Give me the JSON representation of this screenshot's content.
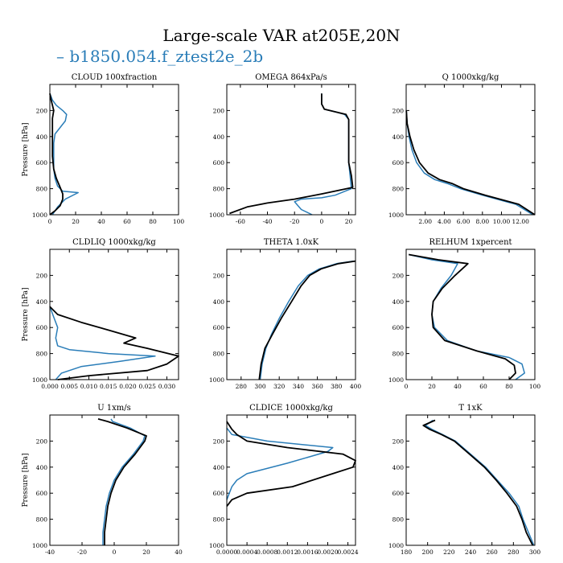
{
  "figure": {
    "title": "Large-scale VAR at205E,20N",
    "legend": [
      {
        "marker": "–",
        "name": "b1850.054.f_ztest2e_2b",
        "color": "#2a7db8"
      }
    ]
  },
  "colors": {
    "series_blue": "#2a7db8",
    "series_black": "#000000"
  },
  "chart_data": [
    {
      "type": "line",
      "title": "CLOUD  100xfraction",
      "ylabel": "Pressure [hPa]",
      "xlim": [
        0,
        100
      ],
      "ylim": [
        1000,
        0
      ],
      "xticks": [
        0,
        20,
        40,
        60,
        80,
        100
      ],
      "xtick_labels": [
        "0",
        "20",
        "40",
        "60",
        "80",
        "100"
      ],
      "yticks": [
        200,
        400,
        600,
        800,
        1000
      ],
      "series": [
        {
          "name": "b1850.054.f_ztest2e_2b",
          "color": "#2a7db8",
          "x": [
            0,
            2,
            5,
            10,
            13,
            12,
            8,
            4,
            3,
            3,
            3,
            4,
            6,
            10,
            22,
            12,
            6,
            2
          ],
          "y": [
            70,
            120,
            160,
            200,
            230,
            280,
            330,
            380,
            450,
            550,
            650,
            720,
            780,
            820,
            830,
            880,
            940,
            1000
          ]
        },
        {
          "name": "",
          "color": "#000000",
          "x": [
            0,
            1,
            2,
            3,
            2,
            2,
            2,
            2,
            3,
            5,
            8,
            10,
            10,
            8,
            4,
            0
          ],
          "y": [
            70,
            120,
            160,
            200,
            260,
            350,
            450,
            550,
            650,
            720,
            790,
            840,
            880,
            930,
            970,
            1000
          ]
        }
      ]
    },
    {
      "type": "line",
      "title": "OMEGA  864xPa/s",
      "ylabel": "",
      "xlim": [
        -70,
        25
      ],
      "ylim": [
        1000,
        0
      ],
      "xticks": [
        -60,
        -40,
        -20,
        0,
        20
      ],
      "xtick_labels": [
        "-60",
        "-40",
        "-20",
        "0",
        "20"
      ],
      "yticks": [
        200,
        400,
        600,
        800,
        1000
      ],
      "series": [
        {
          "name": "b1850.054.f_ztest2e_2b",
          "color": "#2a7db8",
          "x": [
            0,
            0,
            2,
            10,
            17,
            20,
            20,
            20,
            20,
            21,
            22,
            10,
            0,
            -15,
            -20,
            -15,
            -7
          ],
          "y": [
            70,
            150,
            190,
            210,
            230,
            270,
            400,
            500,
            600,
            700,
            800,
            850,
            870,
            880,
            900,
            960,
            1000
          ]
        },
        {
          "name": "",
          "color": "#000000",
          "x": [
            0,
            0,
            2,
            10,
            18,
            20,
            20,
            20,
            20,
            22,
            23,
            0,
            -20,
            -40,
            -55,
            -68
          ],
          "y": [
            70,
            150,
            190,
            210,
            230,
            270,
            400,
            500,
            600,
            700,
            790,
            840,
            880,
            910,
            940,
            990
          ]
        }
      ]
    },
    {
      "type": "line",
      "title": "Q  1000xkg/kg",
      "ylabel": "",
      "xlim": [
        0,
        13.5
      ],
      "ylim": [
        1000,
        0
      ],
      "xticks": [
        2,
        4,
        6,
        8,
        10,
        12
      ],
      "xtick_labels": [
        "2.00",
        "4.00",
        "6.00",
        "8.00",
        "10.00",
        "12.00"
      ],
      "yticks": [
        200,
        400,
        600,
        800,
        1000
      ],
      "series": [
        {
          "name": "b1850.054.f_ztest2e_2b",
          "color": "#2a7db8",
          "x": [
            0.02,
            0.1,
            0.3,
            0.6,
            1.1,
            1.9,
            3.0,
            4.3,
            5.7,
            8.0,
            11.5,
            13.3
          ],
          "y": [
            200,
            300,
            400,
            500,
            600,
            680,
            730,
            760,
            800,
            850,
            920,
            1000
          ]
        },
        {
          "name": "",
          "color": "#000000",
          "x": [
            0.02,
            0.1,
            0.4,
            0.8,
            1.4,
            2.3,
            3.5,
            4.8,
            6.0,
            8.3,
            11.8,
            13.5
          ],
          "y": [
            200,
            300,
            400,
            500,
            600,
            680,
            730,
            760,
            800,
            850,
            920,
            1000
          ]
        }
      ]
    },
    {
      "type": "line",
      "title": "CLDLIQ  1000xkg/kg",
      "ylabel": "Pressure [hPa]",
      "xlim": [
        0,
        0.033
      ],
      "ylim": [
        1000,
        0
      ],
      "xticks": [
        0,
        0.005,
        0.01,
        0.015,
        0.02,
        0.025,
        0.03
      ],
      "xtick_labels": [
        "0.000",
        "0.005",
        "0.010",
        "0.015",
        "0.020",
        "0.025",
        "0.030"
      ],
      "yticks": [
        200,
        400,
        600,
        800,
        1000
      ],
      "series": [
        {
          "name": "b1850.054.f_ztest2e_2b",
          "color": "#2a7db8",
          "x": [
            0,
            0.001,
            0.002,
            0.0015,
            0.002,
            0.005,
            0.015,
            0.027,
            0.018,
            0.008,
            0.003,
            0.0015
          ],
          "y": [
            440,
            520,
            600,
            680,
            740,
            770,
            800,
            820,
            860,
            900,
            950,
            1000
          ]
        },
        {
          "name": "",
          "color": "#000000",
          "x": [
            0,
            0.002,
            0.008,
            0.015,
            0.022,
            0.019,
            0.025,
            0.033,
            0.03,
            0.025,
            0.01,
            0.002
          ],
          "y": [
            440,
            500,
            560,
            620,
            680,
            720,
            760,
            820,
            880,
            930,
            970,
            1000
          ]
        }
      ]
    },
    {
      "type": "line",
      "title": "THETA  1.0xK",
      "ylabel": "",
      "xlim": [
        265,
        400
      ],
      "ylim": [
        1000,
        0
      ],
      "xticks": [
        280,
        300,
        320,
        340,
        360,
        380,
        400
      ],
      "xtick_labels": [
        "280",
        "300",
        "320",
        "340",
        "360",
        "380",
        "400"
      ],
      "yticks": [
        200,
        400,
        600,
        800,
        1000
      ],
      "series": [
        {
          "name": "b1850.054.f_ztest2e_2b",
          "color": "#2a7db8",
          "x": [
            398,
            380,
            362,
            350,
            340,
            330,
            320,
            312,
            306,
            302,
            300
          ],
          "y": [
            90,
            110,
            150,
            200,
            280,
            400,
            530,
            650,
            760,
            880,
            1000
          ]
        },
        {
          "name": "",
          "color": "#000000",
          "x": [
            400,
            382,
            364,
            352,
            343,
            333,
            322,
            313,
            305,
            301,
            299
          ],
          "y": [
            90,
            110,
            150,
            200,
            280,
            400,
            530,
            650,
            760,
            880,
            1000
          ]
        }
      ]
    },
    {
      "type": "line",
      "title": "RELHUM  1xpercent",
      "ylabel": "",
      "xlim": [
        0,
        100
      ],
      "ylim": [
        1000,
        0
      ],
      "xticks": [
        0,
        20,
        40,
        60,
        80,
        100
      ],
      "xtick_labels": [
        "0",
        "20",
        "40",
        "60",
        "80",
        "100"
      ],
      "yticks": [
        200,
        400,
        600,
        800,
        1000
      ],
      "series": [
        {
          "name": "b1850.054.f_ztest2e_2b",
          "color": "#2a7db8",
          "x": [
            2,
            20,
            40,
            35,
            27,
            21,
            20,
            22,
            32,
            55,
            80,
            90,
            92,
            85
          ],
          "y": [
            40,
            80,
            110,
            200,
            300,
            400,
            500,
            600,
            700,
            780,
            830,
            880,
            950,
            1000
          ]
        },
        {
          "name": "",
          "color": "#000000",
          "x": [
            2,
            25,
            48,
            38,
            28,
            21,
            20,
            21,
            30,
            55,
            77,
            84,
            85,
            80
          ],
          "y": [
            40,
            80,
            110,
            200,
            300,
            400,
            500,
            600,
            700,
            780,
            840,
            890,
            950,
            1000
          ]
        }
      ]
    },
    {
      "type": "line",
      "title": "U  1xm/s",
      "ylabel": "Pressure [hPa]",
      "xlim": [
        -40,
        40
      ],
      "ylim": [
        1000,
        0
      ],
      "xticks": [
        -40,
        -20,
        0,
        20,
        40
      ],
      "xtick_labels": [
        "-40",
        "-20",
        "0",
        "20",
        "40"
      ],
      "yticks": [
        200,
        400,
        600,
        800,
        1000
      ],
      "series": [
        {
          "name": "b1850.054.f_ztest2e_2b",
          "color": "#2a7db8",
          "x": [
            -2,
            -1,
            10,
            19,
            18,
            12,
            5,
            0,
            -3,
            -5,
            -6,
            -7,
            -7
          ],
          "y": [
            30,
            50,
            100,
            160,
            200,
            300,
            400,
            500,
            600,
            700,
            800,
            900,
            1000
          ]
        },
        {
          "name": "",
          "color": "#000000",
          "x": [
            -10,
            -4,
            8,
            20,
            19,
            13,
            6,
            1,
            -2,
            -4,
            -5,
            -6,
            -6
          ],
          "y": [
            30,
            50,
            100,
            160,
            200,
            300,
            400,
            500,
            600,
            700,
            800,
            900,
            1000
          ]
        }
      ]
    },
    {
      "type": "line",
      "title": "CLDICE  1000xkg/kg",
      "ylabel": "",
      "xlim": [
        0,
        0.00255
      ],
      "ylim": [
        1000,
        0
      ],
      "xticks": [
        0,
        0.0004,
        0.0008,
        0.0012,
        0.0016,
        0.002,
        0.0024
      ],
      "xtick_labels": [
        "0.0000",
        "0.0004",
        "0.0008",
        "0.0012",
        "0.0016",
        "0.0020",
        "0.0024"
      ],
      "yticks": [
        200,
        400,
        600,
        800,
        1000
      ],
      "series": [
        {
          "name": "b1850.054.f_ztest2e_2b",
          "color": "#2a7db8",
          "x": [
            0,
            0.0001,
            0.0008,
            0.0021,
            0.002,
            0.0012,
            0.0004,
            0.0002,
            0.0001,
            5e-05,
            0
          ],
          "y": [
            100,
            150,
            200,
            250,
            280,
            370,
            450,
            500,
            550,
            600,
            650
          ]
        },
        {
          "name": "",
          "color": "#000000",
          "x": [
            0,
            0.0001,
            0.0002,
            0.0004,
            0.0012,
            0.0023,
            0.00255,
            0.0025,
            0.0021,
            0.0013,
            0.0004,
            0.0001,
            0
          ],
          "y": [
            50,
            110,
            150,
            200,
            250,
            300,
            350,
            400,
            450,
            550,
            600,
            650,
            700
          ]
        }
      ]
    },
    {
      "type": "line",
      "title": "T  1xK",
      "ylabel": "",
      "xlim": [
        180,
        300
      ],
      "ylim": [
        1000,
        0
      ],
      "xticks": [
        180,
        200,
        220,
        240,
        260,
        280,
        300
      ],
      "xtick_labels": [
        "180",
        "200",
        "220",
        "240",
        "260",
        "280",
        "300"
      ],
      "yticks": [
        200,
        400,
        600,
        800,
        1000
      ],
      "series": [
        {
          "name": "b1850.054.f_ztest2e_2b",
          "color": "#2a7db8",
          "x": [
            205,
            198,
            204,
            214,
            226,
            240,
            254,
            265,
            276,
            285,
            289,
            294,
            299
          ],
          "y": [
            40,
            80,
            110,
            150,
            200,
            300,
            400,
            500,
            600,
            700,
            800,
            900,
            1000
          ]
        },
        {
          "name": "",
          "color": "#000000",
          "x": [
            207,
            196,
            202,
            213,
            225,
            239,
            253,
            264,
            274,
            283,
            288,
            292,
            298
          ],
          "y": [
            40,
            80,
            110,
            150,
            200,
            300,
            400,
            500,
            600,
            700,
            800,
            900,
            1000
          ]
        }
      ]
    }
  ]
}
